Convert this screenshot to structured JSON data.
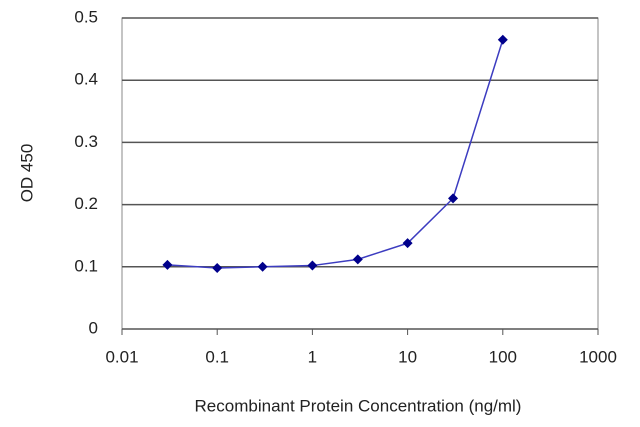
{
  "chart_data": {
    "type": "line",
    "x_label": "Recombinant Protein Concentration (ng/ml)",
    "y_label": "OD 450",
    "x": [
      0.03,
      0.1,
      0.3,
      1,
      3,
      10,
      30,
      100
    ],
    "series": [
      {
        "color": "#00008b",
        "line_color": "#3c3cc0",
        "values": [
          0.103,
          0.098,
          0.1,
          0.102,
          0.112,
          0.138,
          0.21,
          0.465
        ]
      }
    ],
    "xlim": [
      0.01,
      1000
    ],
    "xticks": [
      0.01,
      0.1,
      1,
      10,
      100,
      1000
    ],
    "log_x": true,
    "ylim": [
      0,
      0.5
    ],
    "yticks": [
      0,
      0.1,
      0.2,
      0.3,
      0.4,
      0.5
    ],
    "grid": true
  }
}
